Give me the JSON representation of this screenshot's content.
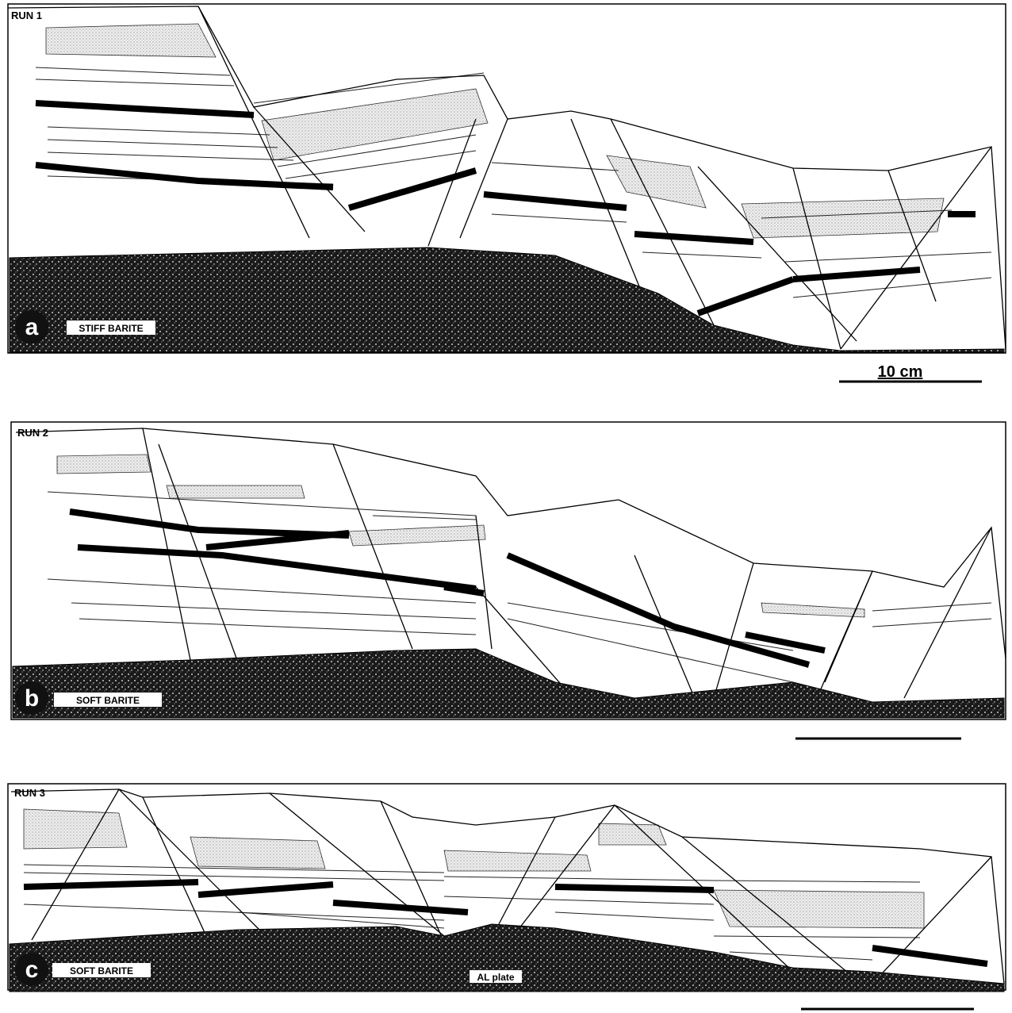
{
  "panels": [
    {
      "run": "RUN 1",
      "letter": "a",
      "material": "STIFF BARITE",
      "scale_label": "10 cm"
    },
    {
      "run": "RUN 2",
      "letter": "b",
      "material": "SOFT BARITE"
    },
    {
      "run": "RUN 3",
      "letter": "c",
      "material": "SOFT BARITE",
      "plate_label": "AL plate"
    }
  ]
}
